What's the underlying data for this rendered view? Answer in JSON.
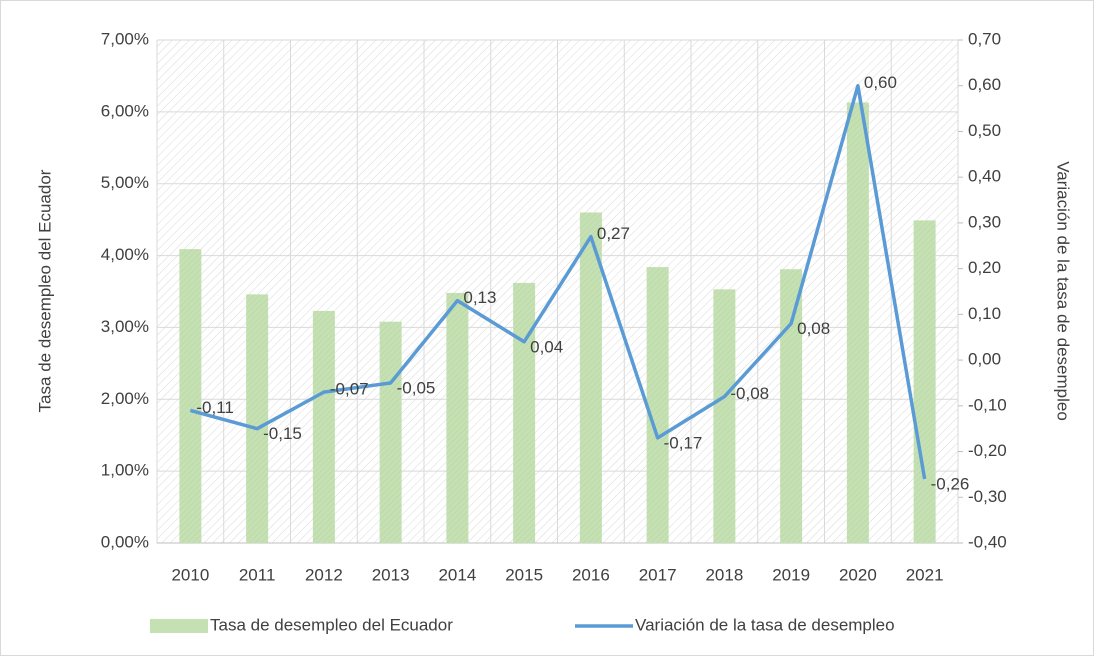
{
  "chart_data": {
    "type": "bar",
    "categories": [
      "2010",
      "2011",
      "2012",
      "2013",
      "2014",
      "2015",
      "2016",
      "2017",
      "2018",
      "2019",
      "2020",
      "2021"
    ],
    "series": [
      {
        "name": "Tasa de desempleo del Ecuador",
        "type": "bar",
        "color": "#c5e0b3",
        "values": [
          4.09,
          3.46,
          3.23,
          3.08,
          3.48,
          3.62,
          4.6,
          3.84,
          3.53,
          3.81,
          6.13,
          4.49
        ]
      },
      {
        "name": "Variación de la tasa de desempleo",
        "type": "line",
        "axis": "y2",
        "color": "#5b9bd5",
        "values": [
          -0.11,
          -0.15,
          -0.07,
          -0.05,
          0.13,
          0.04,
          0.27,
          -0.17,
          -0.08,
          0.08,
          0.6,
          -0.26
        ],
        "value_labels": [
          "-0,11",
          "-0,15",
          "-0,07",
          "-0,05",
          "0,13",
          "0,04",
          "0,27",
          "-0,17",
          "-0,08",
          "0,08",
          "0,60",
          "-0,26"
        ]
      }
    ],
    "ylabel": "Tasa de desempleo del Ecuador",
    "y2label": "Variación de la tasa de desempleo",
    "ylim": [
      0,
      7
    ],
    "yticks": [
      {
        "value": 0,
        "label": "0,00%"
      },
      {
        "value": 1,
        "label": "1,00%"
      },
      {
        "value": 2,
        "label": "2,00%"
      },
      {
        "value": 3,
        "label": "3,00%"
      },
      {
        "value": 4,
        "label": "4,00%"
      },
      {
        "value": 5,
        "label": "5,00%"
      },
      {
        "value": 6,
        "label": "6,00%"
      },
      {
        "value": 7,
        "label": "7,00%"
      }
    ],
    "y2lim": [
      -0.4,
      0.7
    ],
    "y2ticks": [
      {
        "value": -0.4,
        "label": "-0,40"
      },
      {
        "value": -0.3,
        "label": "-0,30"
      },
      {
        "value": -0.2,
        "label": "-0,20"
      },
      {
        "value": -0.1,
        "label": "-0,10"
      },
      {
        "value": 0,
        "label": "0,00"
      },
      {
        "value": 0.1,
        "label": "0,10"
      },
      {
        "value": 0.2,
        "label": "0,20"
      },
      {
        "value": 0.3,
        "label": "0,30"
      },
      {
        "value": 0.4,
        "label": "0,40"
      },
      {
        "value": 0.5,
        "label": "0,50"
      },
      {
        "value": 0.6,
        "label": "0,60"
      },
      {
        "value": 0.7,
        "label": "0,70"
      }
    ],
    "grid": true,
    "legend": "bottom"
  }
}
